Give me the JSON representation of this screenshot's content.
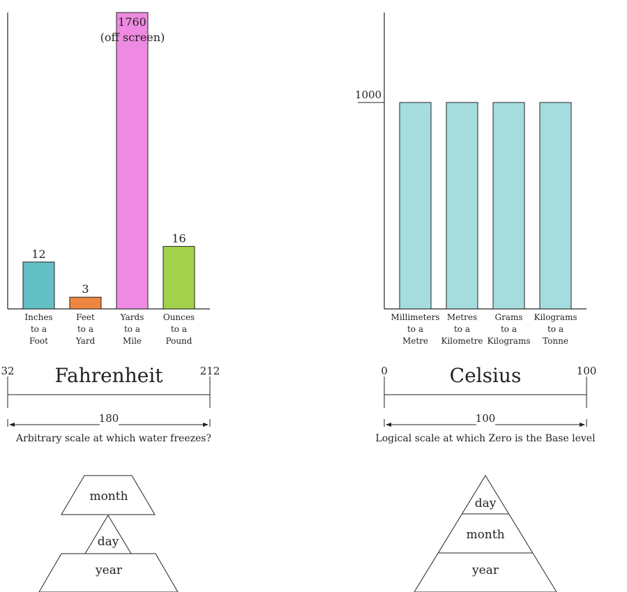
{
  "chart_data": [
    {
      "type": "bar",
      "categories": [
        "Inches to a Foot",
        "Feet to a Yard",
        "Yards to a Mile",
        "Ounces to a Pound"
      ],
      "category_lines": [
        [
          "Inches",
          "to a",
          "Foot"
        ],
        [
          "Feet",
          "to a",
          "Yard"
        ],
        [
          "Yards",
          "to a",
          "Mile"
        ],
        [
          "Ounces",
          "to a",
          "Pound"
        ]
      ],
      "values": [
        12,
        3,
        1760,
        16
      ],
      "value_labels": [
        "12",
        "3",
        "1760",
        "16"
      ],
      "annotation": "(off screen)",
      "colors": [
        "#62c0c4",
        "#ee8642",
        "#ee8ae1",
        "#a3d24a"
      ]
    },
    {
      "type": "bar",
      "categories": [
        "Millimeters to a Metre",
        "Metres to a Kilometre",
        "Grams to a Kilograms",
        "Kilograms to a Tonne"
      ],
      "category_lines": [
        [
          "Millimeters",
          "to a",
          "Metre"
        ],
        [
          "Metres",
          "to a",
          "Kilometre"
        ],
        [
          "Grams",
          "to a",
          "Kilograms"
        ],
        [
          "Kilograms",
          "to a",
          "Tonne"
        ]
      ],
      "values": [
        1000,
        1000,
        1000,
        1000
      ],
      "ytick_label": "1000",
      "colors": [
        "#a5dddf",
        "#a5dddf",
        "#a5dddf",
        "#a5dddf"
      ]
    }
  ],
  "fahrenheit": {
    "title": "Fahrenheit",
    "left": "32",
    "right": "212",
    "span": "180",
    "caption": "Arbitrary scale at which water freezes?"
  },
  "celsius": {
    "title": "Celsius",
    "left": "0",
    "right": "100",
    "span": "100",
    "caption": "Logical scale at which Zero is the Base level"
  },
  "us_date": {
    "top": "month",
    "middle": "day",
    "bottom": "year"
  },
  "iso_date": {
    "top": "day",
    "middle": "month",
    "bottom": "year"
  }
}
